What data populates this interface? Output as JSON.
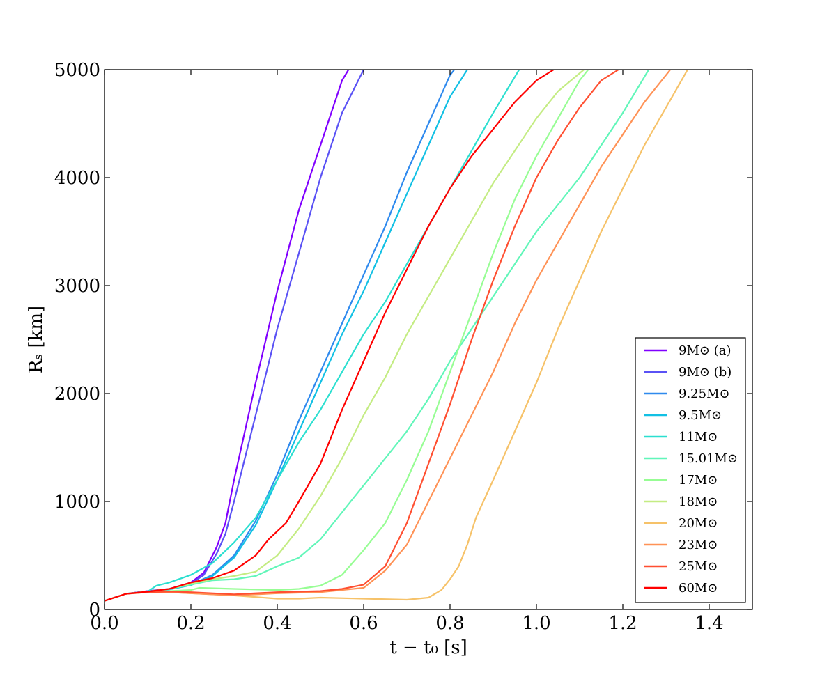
{
  "chart_data": {
    "type": "line",
    "xlabel": "t − t₀ [s]",
    "ylabel": "Rₛ [km]",
    "xlim": [
      0.0,
      1.5
    ],
    "ylim": [
      0,
      5000
    ],
    "xticks": [
      "0.0",
      "0.2",
      "0.4",
      "0.6",
      "0.8",
      "1.0",
      "1.2",
      "1.4"
    ],
    "yticks": [
      "0",
      "1000",
      "2000",
      "3000",
      "4000",
      "5000"
    ],
    "grid": false,
    "legend_position": "lower-right",
    "series": [
      {
        "name": "9M⊙ (a)",
        "color": "#8000ff",
        "x": [
          0.0,
          0.05,
          0.1,
          0.15,
          0.2,
          0.23,
          0.26,
          0.28,
          0.3,
          0.35,
          0.4,
          0.45,
          0.5,
          0.55,
          0.565
        ],
        "y": [
          80,
          145,
          170,
          190,
          250,
          340,
          580,
          800,
          1200,
          2100,
          2950,
          3700,
          4300,
          4900,
          5000
        ]
      },
      {
        "name": "9M⊙ (b)",
        "color": "#5a52f5",
        "x": [
          0.0,
          0.05,
          0.1,
          0.15,
          0.2,
          0.23,
          0.26,
          0.28,
          0.3,
          0.35,
          0.4,
          0.45,
          0.5,
          0.55,
          0.6
        ],
        "y": [
          80,
          145,
          170,
          190,
          240,
          320,
          520,
          700,
          1000,
          1800,
          2600,
          3300,
          4000,
          4600,
          5000
        ]
      },
      {
        "name": "9.25M⊙",
        "color": "#2f8aee",
        "x": [
          0.0,
          0.05,
          0.1,
          0.15,
          0.2,
          0.25,
          0.3,
          0.35,
          0.4,
          0.45,
          0.5,
          0.55,
          0.6,
          0.65,
          0.7,
          0.75,
          0.8,
          0.81
        ],
        "y": [
          80,
          145,
          165,
          190,
          230,
          320,
          500,
          820,
          1250,
          1750,
          2200,
          2650,
          3100,
          3550,
          4050,
          4500,
          4950,
          5000
        ]
      },
      {
        "name": "9.5M⊙",
        "color": "#12c0e4",
        "x": [
          0.0,
          0.05,
          0.1,
          0.15,
          0.2,
          0.25,
          0.3,
          0.35,
          0.4,
          0.45,
          0.5,
          0.55,
          0.6,
          0.65,
          0.7,
          0.75,
          0.8,
          0.84
        ],
        "y": [
          80,
          145,
          165,
          185,
          225,
          310,
          480,
          780,
          1200,
          1650,
          2100,
          2550,
          2950,
          3400,
          3850,
          4300,
          4750,
          5000
        ]
      },
      {
        "name": "11M⊙",
        "color": "#2bdfd0",
        "x": [
          0.0,
          0.05,
          0.1,
          0.12,
          0.15,
          0.2,
          0.25,
          0.3,
          0.35,
          0.4,
          0.45,
          0.5,
          0.55,
          0.6,
          0.65,
          0.7,
          0.75,
          0.8,
          0.85,
          0.9,
          0.96
        ],
        "y": [
          80,
          145,
          165,
          220,
          250,
          320,
          430,
          620,
          850,
          1200,
          1550,
          1850,
          2200,
          2550,
          2850,
          3200,
          3550,
          3900,
          4250,
          4600,
          5000
        ]
      },
      {
        "name": "15.01M⊙",
        "color": "#61f6b9",
        "x": [
          0.0,
          0.05,
          0.1,
          0.15,
          0.2,
          0.25,
          0.3,
          0.35,
          0.4,
          0.45,
          0.5,
          0.55,
          0.6,
          0.65,
          0.7,
          0.75,
          0.8,
          0.85,
          0.9,
          0.95,
          1.0,
          1.1,
          1.2,
          1.26
        ],
        "y": [
          80,
          145,
          165,
          190,
          230,
          270,
          280,
          310,
          400,
          480,
          650,
          900,
          1150,
          1400,
          1650,
          1950,
          2300,
          2600,
          2900,
          3200,
          3500,
          4000,
          4600,
          5000
        ]
      },
      {
        "name": "17M⊙",
        "color": "#97fd94",
        "x": [
          0.0,
          0.05,
          0.1,
          0.15,
          0.2,
          0.22,
          0.3,
          0.4,
          0.45,
          0.5,
          0.55,
          0.6,
          0.65,
          0.7,
          0.75,
          0.8,
          0.85,
          0.9,
          0.95,
          1.0,
          1.05,
          1.1,
          1.12
        ],
        "y": [
          80,
          145,
          165,
          170,
          180,
          200,
          190,
          180,
          190,
          220,
          320,
          550,
          800,
          1200,
          1650,
          2200,
          2750,
          3300,
          3800,
          4200,
          4550,
          4900,
          5000
        ]
      },
      {
        "name": "18M⊙",
        "color": "#c4ec83",
        "x": [
          0.0,
          0.05,
          0.1,
          0.15,
          0.2,
          0.25,
          0.3,
          0.35,
          0.4,
          0.45,
          0.5,
          0.55,
          0.6,
          0.65,
          0.7,
          0.75,
          0.8,
          0.85,
          0.9,
          0.95,
          1.0,
          1.05,
          1.11
        ],
        "y": [
          80,
          145,
          165,
          190,
          240,
          280,
          310,
          350,
          500,
          750,
          1050,
          1400,
          1800,
          2150,
          2550,
          2900,
          3250,
          3600,
          3950,
          4250,
          4550,
          4800,
          5000
        ]
      },
      {
        "name": "20M⊙",
        "color": "#f6c269",
        "x": [
          0.0,
          0.05,
          0.1,
          0.15,
          0.2,
          0.3,
          0.4,
          0.45,
          0.5,
          0.6,
          0.7,
          0.75,
          0.78,
          0.8,
          0.82,
          0.84,
          0.86,
          0.9,
          0.95,
          1.0,
          1.05,
          1.1,
          1.15,
          1.2,
          1.25,
          1.3,
          1.35
        ],
        "y": [
          80,
          145,
          160,
          160,
          150,
          130,
          100,
          100,
          110,
          100,
          90,
          110,
          180,
          280,
          400,
          600,
          850,
          1200,
          1650,
          2100,
          2600,
          3050,
          3500,
          3900,
          4300,
          4650,
          5000
        ]
      },
      {
        "name": "23M⊙",
        "color": "#ff9256",
        "x": [
          0.0,
          0.05,
          0.1,
          0.15,
          0.2,
          0.3,
          0.4,
          0.5,
          0.6,
          0.65,
          0.7,
          0.75,
          0.8,
          0.85,
          0.9,
          0.95,
          1.0,
          1.05,
          1.1,
          1.15,
          1.2,
          1.25,
          1.3,
          1.31
        ],
        "y": [
          80,
          145,
          160,
          160,
          150,
          130,
          150,
          160,
          200,
          360,
          600,
          1000,
          1400,
          1800,
          2200,
          2650,
          3050,
          3400,
          3750,
          4100,
          4400,
          4700,
          4950,
          5000
        ]
      },
      {
        "name": "25M⊙",
        "color": "#ff4f31",
        "x": [
          0.0,
          0.05,
          0.1,
          0.15,
          0.2,
          0.3,
          0.4,
          0.5,
          0.55,
          0.6,
          0.65,
          0.7,
          0.75,
          0.8,
          0.85,
          0.9,
          0.95,
          1.0,
          1.05,
          1.1,
          1.15,
          1.19
        ],
        "y": [
          80,
          145,
          160,
          165,
          160,
          140,
          160,
          170,
          190,
          230,
          400,
          800,
          1350,
          1900,
          2500,
          3050,
          3550,
          4000,
          4350,
          4650,
          4900,
          5000
        ]
      },
      {
        "name": "60M⊙",
        "color": "#ff0000",
        "x": [
          0.0,
          0.05,
          0.1,
          0.15,
          0.2,
          0.25,
          0.3,
          0.35,
          0.38,
          0.42,
          0.45,
          0.5,
          0.55,
          0.6,
          0.65,
          0.7,
          0.75,
          0.8,
          0.85,
          0.9,
          0.95,
          1.0,
          1.04
        ],
        "y": [
          80,
          145,
          165,
          190,
          250,
          290,
          360,
          500,
          650,
          800,
          1000,
          1350,
          1850,
          2300,
          2750,
          3150,
          3550,
          3900,
          4200,
          4450,
          4700,
          4900,
          5000
        ]
      }
    ]
  }
}
